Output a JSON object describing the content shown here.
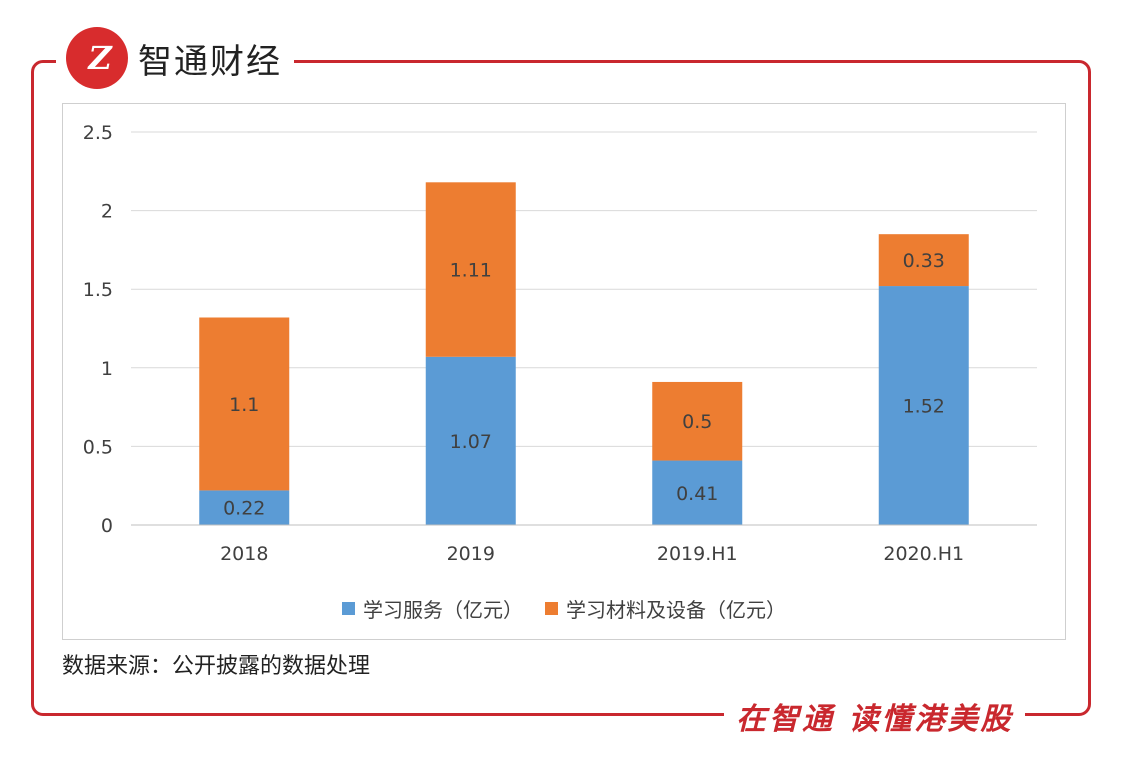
{
  "brand": {
    "logo_text": "Z",
    "name": "智通财经"
  },
  "slogan": "在智通 读懂港美股",
  "source_note": "数据来源：公开披露的数据处理",
  "colors": {
    "frame": "#c9282e",
    "series1": "#5b9bd5",
    "series2": "#ed7d31"
  },
  "chart_data": {
    "type": "bar",
    "stacked": true,
    "categories": [
      "2018",
      "2019",
      "2019.H1",
      "2020.H1"
    ],
    "series": [
      {
        "name": "学习服务（亿元）",
        "values": [
          0.22,
          1.07,
          0.41,
          1.52
        ],
        "color": "#5b9bd5",
        "labels": [
          "0.22",
          "1.07",
          "0.41",
          "1.52"
        ]
      },
      {
        "name": "学习材料及设备（亿元）",
        "values": [
          1.1,
          1.11,
          0.5,
          0.33
        ],
        "color": "#ed7d31",
        "labels": [
          "1.1",
          "1.11",
          "0.5",
          "0.33"
        ]
      }
    ],
    "y_ticks": [
      "0",
      "0.5",
      "1",
      "1.5",
      "2",
      "2.5"
    ],
    "ylim": [
      0,
      2.5
    ],
    "grid": true,
    "legend": "bottom"
  }
}
